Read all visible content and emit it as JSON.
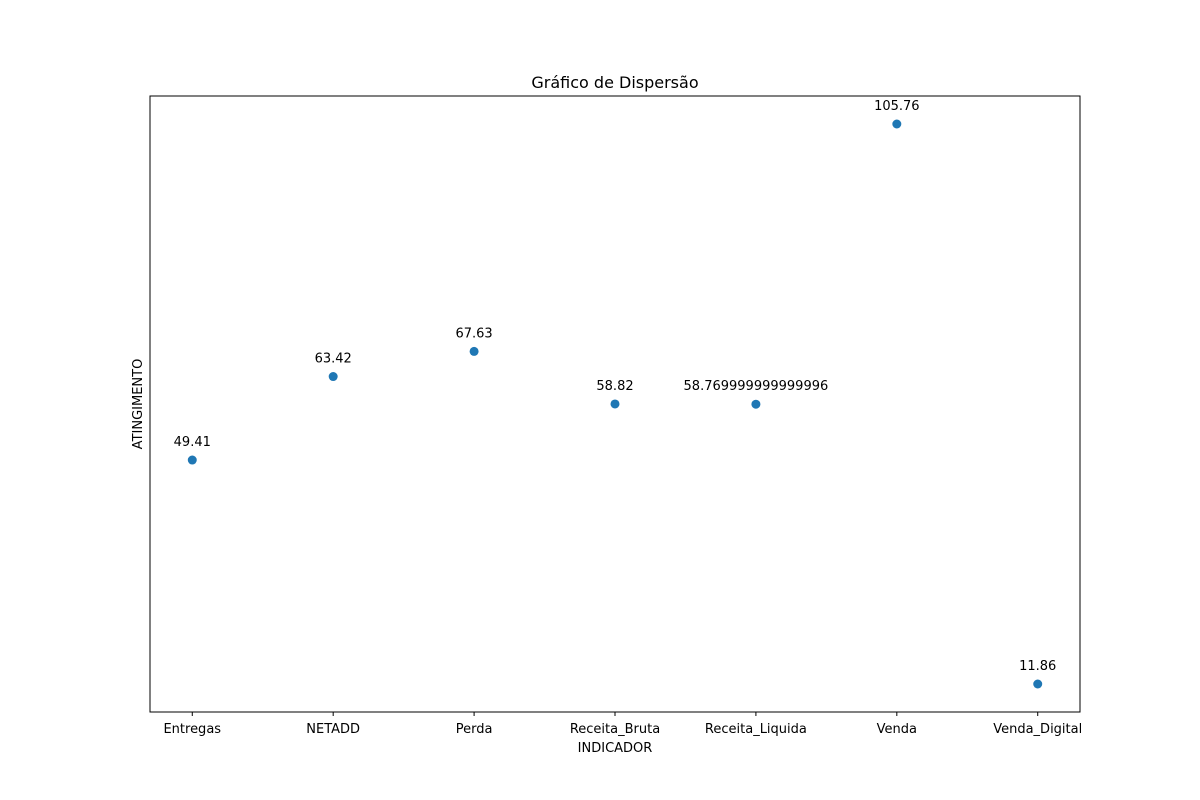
{
  "chart_data": {
    "type": "scatter",
    "title": "Gráfico de Dispersão",
    "xlabel": "INDICADOR",
    "ylabel": "ATINGIMENTO",
    "categories": [
      "Entregas",
      "NETADD",
      "Perda",
      "Receita_Bruta",
      "Receita_Liquida",
      "Venda",
      "Venda_Digital"
    ],
    "values": [
      49.41,
      63.42,
      67.63,
      58.82,
      58.769999999999996,
      105.76,
      11.86
    ],
    "data_labels": [
      "49.41",
      "63.42",
      "67.63",
      "58.82",
      "58.769999999999996",
      "105.76",
      "11.86"
    ],
    "ylim": [
      7.165,
      110.455
    ],
    "y_ticks_visible": false,
    "grid": false,
    "legend": "none",
    "marker_color": "#1f77b4"
  }
}
